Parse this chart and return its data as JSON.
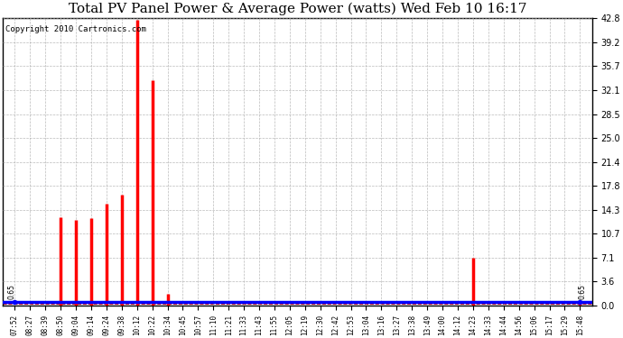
{
  "title": "Total PV Panel Power & Average Power (watts) Wed Feb 10 16:17",
  "copyright": "Copyright 2010 Cartronics.com",
  "yticks": [
    0.0,
    3.6,
    7.1,
    10.7,
    14.3,
    17.8,
    21.4,
    25.0,
    28.5,
    32.1,
    35.7,
    39.2,
    42.8
  ],
  "ylim": [
    0.0,
    42.8
  ],
  "avg_line_value": 0.65,
  "avg_label": "0.65",
  "x_labels": [
    "07:52",
    "08:27",
    "08:39",
    "08:50",
    "09:04",
    "09:14",
    "09:24",
    "09:38",
    "10:12",
    "10:22",
    "10:34",
    "10:45",
    "10:57",
    "11:10",
    "11:21",
    "11:33",
    "11:43",
    "11:55",
    "12:05",
    "12:19",
    "12:30",
    "12:42",
    "12:53",
    "13:04",
    "13:16",
    "13:27",
    "13:38",
    "13:49",
    "14:00",
    "14:12",
    "14:23",
    "14:33",
    "14:44",
    "14:56",
    "15:06",
    "15:17",
    "15:29",
    "15:48"
  ],
  "bar_data": {
    "08:50": 13.2,
    "09:04": 12.8,
    "09:14": 13.0,
    "09:24": 15.2,
    "09:38": 16.5,
    "10:12": 42.5,
    "10:22": 33.5,
    "10:34": 1.8,
    "14:23": 7.2,
    "15:48": 0.65
  },
  "dashed_line_value": 0.3,
  "bar_color": "#ff0000",
  "line_color": "#0000ff",
  "dashed_color": "#cc0000",
  "bg_color": "#ffffff",
  "grid_color": "#aaaaaa",
  "title_fontsize": 11,
  "copyright_fontsize": 6.5,
  "tick_fontsize": 5.5,
  "ytick_fontsize": 7
}
